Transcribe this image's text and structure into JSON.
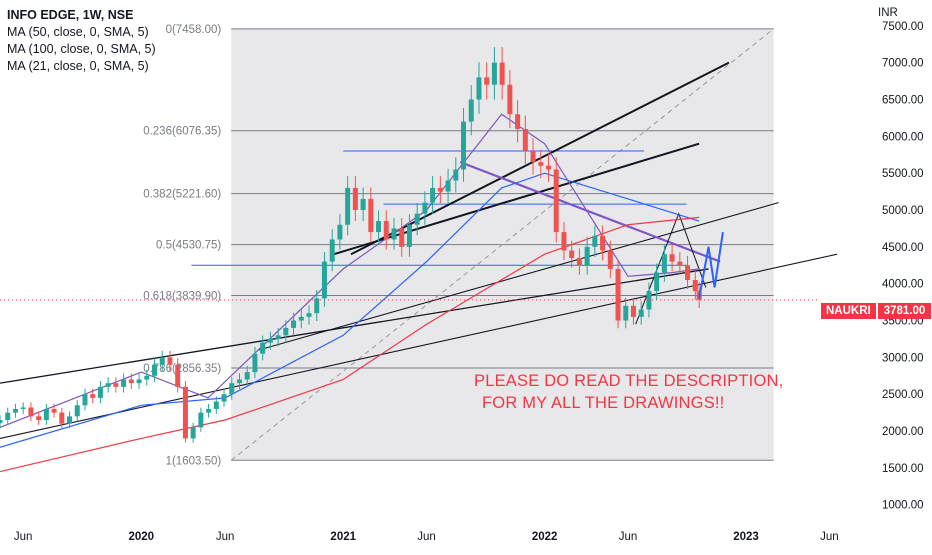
{
  "header": {
    "symbol_line": "INFO EDGE, 1W, NSE",
    "indicators": [
      "MA (50, close, 0, SMA, 5)",
      "MA (100, close, 0, SMA, 5)",
      "MA (21, close, 0, SMA, 5)"
    ]
  },
  "currency": "INR",
  "price_tag": {
    "symbol": "NAUKRI",
    "value": "3781.00"
  },
  "annotation": {
    "line1": "PLEASE DO READ THE DESCRIPTION,",
    "line2": "FOR MY ALL THE DRAWINGS!!"
  },
  "colors": {
    "up": "#26a69a",
    "down": "#ef5350",
    "ma50": "#2962ff",
    "ma100": "#f23645",
    "ma21": "#7e57c2",
    "fib": "#787b86",
    "annotation": "#f23645"
  },
  "chart_data": {
    "type": "candlestick",
    "title": "INFO EDGE, 1W, NSE",
    "y_axis": {
      "unit": "INR",
      "ticks": [
        1000,
        1500,
        2000,
        2500,
        3000,
        3500,
        4000,
        4500,
        5000,
        5500,
        6000,
        6500,
        7000,
        7500
      ],
      "tick_labels": [
        "1000.00",
        "1500.00",
        "2000.00",
        "2500.00",
        "3000.00",
        "3500.00",
        "4000.00",
        "4500.00",
        "5000.00",
        "5500.00",
        "6000.00",
        "6500.00",
        "7000.00",
        "7500.00"
      ],
      "range": [
        820,
        7850
      ]
    },
    "x_axis": {
      "range": [
        "2019-04-20",
        "2023-08-10"
      ],
      "ticks": [
        {
          "date": "2019-06-01",
          "label": "Jun"
        },
        {
          "date": "2020-01-01",
          "label": "2020"
        },
        {
          "date": "2020-06-01",
          "label": "Jun"
        },
        {
          "date": "2021-01-01",
          "label": "2021"
        },
        {
          "date": "2021-06-01",
          "label": "Jun"
        },
        {
          "date": "2022-01-01",
          "label": "2022"
        },
        {
          "date": "2022-06-01",
          "label": "Jun"
        },
        {
          "date": "2023-01-01",
          "label": "2023"
        },
        {
          "date": "2023-06-01",
          "label": "Jun"
        }
      ]
    },
    "candles_weekly_close": [
      [
        "2019-04-20",
        2150
      ],
      [
        "2019-05-04",
        2250
      ],
      [
        "2019-05-18",
        2300
      ],
      [
        "2019-06-01",
        2320
      ],
      [
        "2019-06-15",
        2200
      ],
      [
        "2019-06-29",
        2150
      ],
      [
        "2019-07-13",
        2300
      ],
      [
        "2019-07-27",
        2250
      ],
      [
        "2019-08-10",
        2100
      ],
      [
        "2019-08-24",
        2200
      ],
      [
        "2019-09-07",
        2350
      ],
      [
        "2019-09-21",
        2500
      ],
      [
        "2019-10-05",
        2450
      ],
      [
        "2019-10-19",
        2600
      ],
      [
        "2019-11-02",
        2650
      ],
      [
        "2019-11-16",
        2600
      ],
      [
        "2019-11-30",
        2700
      ],
      [
        "2019-12-14",
        2650
      ],
      [
        "2019-12-28",
        2700
      ],
      [
        "2020-01-11",
        2750
      ],
      [
        "2020-01-25",
        2900
      ],
      [
        "2020-02-08",
        3000
      ],
      [
        "2020-02-22",
        2900
      ],
      [
        "2020-03-07",
        2600
      ],
      [
        "2020-03-21",
        1900
      ],
      [
        "2020-04-04",
        2050
      ],
      [
        "2020-04-18",
        2250
      ],
      [
        "2020-05-02",
        2300
      ],
      [
        "2020-05-16",
        2400
      ],
      [
        "2020-05-30",
        2500
      ],
      [
        "2020-06-13",
        2650
      ],
      [
        "2020-06-27",
        2700
      ],
      [
        "2020-07-11",
        2800
      ],
      [
        "2020-07-25",
        3050
      ],
      [
        "2020-08-08",
        3200
      ],
      [
        "2020-08-22",
        3250
      ],
      [
        "2020-09-05",
        3300
      ],
      [
        "2020-09-19",
        3400
      ],
      [
        "2020-10-03",
        3500
      ],
      [
        "2020-10-17",
        3550
      ],
      [
        "2020-10-31",
        3600
      ],
      [
        "2020-11-14",
        3800
      ],
      [
        "2020-11-28",
        4300
      ],
      [
        "2020-12-12",
        4600
      ],
      [
        "2020-12-26",
        4800
      ],
      [
        "2021-01-09",
        5300
      ],
      [
        "2021-01-23",
        5000
      ],
      [
        "2021-02-06",
        5150
      ],
      [
        "2021-02-20",
        4700
      ],
      [
        "2021-03-06",
        4850
      ],
      [
        "2021-03-20",
        4600
      ],
      [
        "2021-04-03",
        4750
      ],
      [
        "2021-04-17",
        4500
      ],
      [
        "2021-05-01",
        4800
      ],
      [
        "2021-05-15",
        4950
      ],
      [
        "2021-05-29",
        5100
      ],
      [
        "2021-06-12",
        5300
      ],
      [
        "2021-06-26",
        5250
      ],
      [
        "2021-07-10",
        5400
      ],
      [
        "2021-07-24",
        5550
      ],
      [
        "2021-08-07",
        6200
      ],
      [
        "2021-08-21",
        6500
      ],
      [
        "2021-09-04",
        6800
      ],
      [
        "2021-09-18",
        6700
      ],
      [
        "2021-10-02",
        7000
      ],
      [
        "2021-10-16",
        6700
      ],
      [
        "2021-10-30",
        6300
      ],
      [
        "2021-11-13",
        6100
      ],
      [
        "2021-11-27",
        5800
      ],
      [
        "2021-12-11",
        5650
      ],
      [
        "2021-12-25",
        5600
      ],
      [
        "2022-01-08",
        5550
      ],
      [
        "2022-01-22",
        4700
      ],
      [
        "2022-02-05",
        4450
      ],
      [
        "2022-02-19",
        4350
      ],
      [
        "2022-03-05",
        4250
      ],
      [
        "2022-03-19",
        4500
      ],
      [
        "2022-04-02",
        4650
      ],
      [
        "2022-04-16",
        4450
      ],
      [
        "2022-04-30",
        4200
      ],
      [
        "2022-05-14",
        3500
      ],
      [
        "2022-05-28",
        3700
      ],
      [
        "2022-06-11",
        3550
      ],
      [
        "2022-06-25",
        3650
      ],
      [
        "2022-07-09",
        3900
      ],
      [
        "2022-07-23",
        4150
      ],
      [
        "2022-08-06",
        4400
      ],
      [
        "2022-08-20",
        4300
      ],
      [
        "2022-09-03",
        4250
      ],
      [
        "2022-09-17",
        4050
      ],
      [
        "2022-10-01",
        3900
      ],
      [
        "2022-10-08",
        3781
      ]
    ],
    "moving_averages": [
      {
        "name": "MA (50, close, 0, SMA, 5)",
        "color": "#2962ff",
        "points": [
          [
            "2019-04-20",
            1780
          ],
          [
            "2020-01-01",
            2350
          ],
          [
            "2020-06-01",
            2450
          ],
          [
            "2021-01-01",
            3300
          ],
          [
            "2021-06-01",
            4300
          ],
          [
            "2021-10-15",
            5300
          ],
          [
            "2022-01-01",
            5500
          ],
          [
            "2022-06-01",
            5150
          ],
          [
            "2022-10-08",
            4850
          ]
        ]
      },
      {
        "name": "MA (100, close, 0, SMA, 5)",
        "color": "#f23645",
        "points": [
          [
            "2019-04-20",
            1450
          ],
          [
            "2020-01-01",
            1900
          ],
          [
            "2020-06-01",
            2150
          ],
          [
            "2021-01-01",
            2700
          ],
          [
            "2021-06-01",
            3450
          ],
          [
            "2022-01-01",
            4400
          ],
          [
            "2022-06-01",
            4800
          ],
          [
            "2022-10-08",
            4900
          ]
        ]
      },
      {
        "name": "MA (21, close, 0, SMA, 5)",
        "color": "#7e57c2",
        "points": [
          [
            "2019-04-20",
            2050
          ],
          [
            "2020-01-01",
            2800
          ],
          [
            "2020-05-01",
            2450
          ],
          [
            "2021-01-01",
            4200
          ],
          [
            "2021-06-01",
            5000
          ],
          [
            "2021-10-15",
            6300
          ],
          [
            "2022-01-01",
            5900
          ],
          [
            "2022-06-01",
            4100
          ],
          [
            "2022-08-20",
            4150
          ],
          [
            "2022-10-08",
            4200
          ]
        ]
      }
    ],
    "fib_levels": [
      {
        "ratio": "0",
        "price": "7458.00",
        "label": "0(7458.00)"
      },
      {
        "ratio": "0.236",
        "price": "6076.35",
        "label": "0.236(6076.35)"
      },
      {
        "ratio": "0.382",
        "price": "5221.60",
        "label": "0.382(5221.60)"
      },
      {
        "ratio": "0.5",
        "price": "4530.75",
        "label": "0.5(4530.75)"
      },
      {
        "ratio": "0.618",
        "price": "3839.90",
        "label": "0.618(3839.90)"
      },
      {
        "ratio": "0.786",
        "price": "2856.35",
        "label": "0.786(2856.35)"
      },
      {
        "ratio": "1",
        "price": "1603.50",
        "label": "1(1603.50)"
      }
    ],
    "last_price": 3781.0,
    "grid": false,
    "legend_position": "top-left"
  }
}
